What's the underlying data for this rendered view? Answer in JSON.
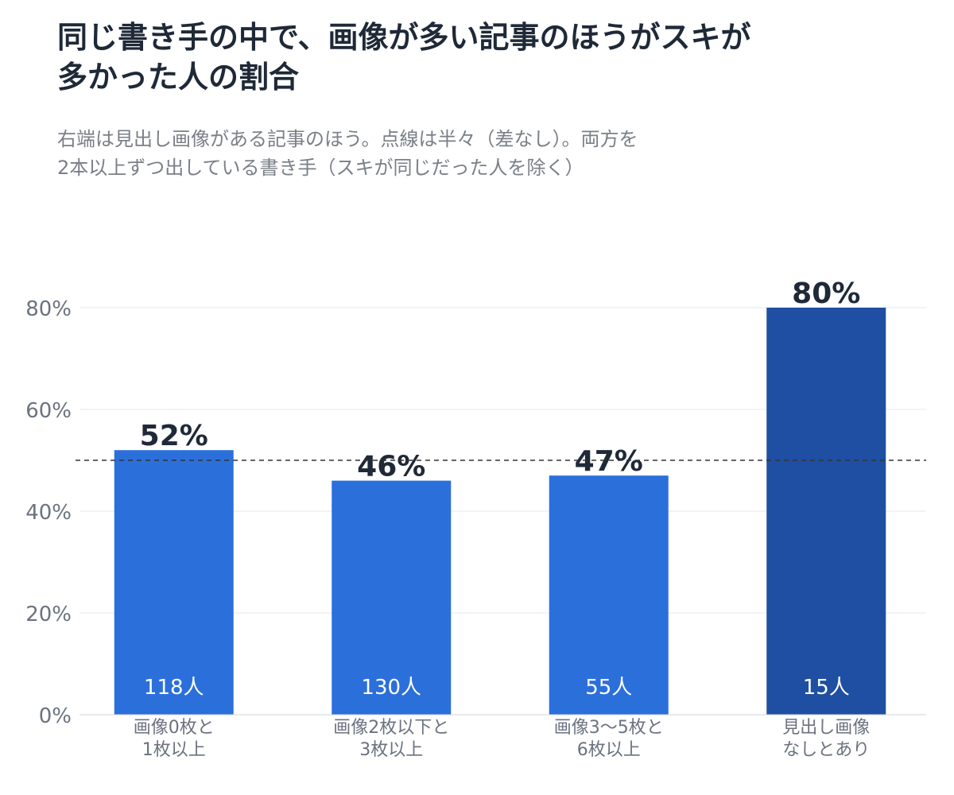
{
  "header": {
    "title_lines": [
      "同じ書き手の中で、画像が多い記事のほうがスキが",
      "多かった人の割合"
    ],
    "subtitle_lines": [
      "右端は見出し画像がある記事のほう。点線は半々（差なし）。両方を",
      "2本以上ずつ出している書き手（スキが同じだった人を除く）"
    ]
  },
  "colors": {
    "bar": "#2b6fdb",
    "bar_highlight": "#1f4fa3",
    "gridline": "#e5e7eb",
    "tick_text": "#6b7280",
    "value_label": "#1f2937",
    "count_label": "#ffffff",
    "reference_line": "#333333"
  },
  "chart_data": {
    "type": "bar",
    "categories": [
      [
        "画像0枚と",
        "1枚以上"
      ],
      [
        "画像2枚以下と",
        "3枚以上"
      ],
      [
        "画像3〜5枚と",
        "6枚以上"
      ],
      [
        "見出し画像",
        "なしとあり"
      ]
    ],
    "values": [
      52,
      46,
      47,
      80
    ],
    "value_labels": [
      "52%",
      "46%",
      "47%",
      "80%"
    ],
    "count_labels": [
      "118人",
      "130人",
      "55人",
      "15人"
    ],
    "highlight_index": 3,
    "ylim": [
      0,
      80
    ],
    "yticks": [
      0,
      20,
      40,
      60,
      80
    ],
    "ytick_labels": [
      "0%",
      "20%",
      "40%",
      "60%",
      "80%"
    ],
    "reference_line": 50,
    "reference_style": "dashed",
    "grid": true,
    "legend": "none",
    "xlabel": "",
    "ylabel": ""
  }
}
